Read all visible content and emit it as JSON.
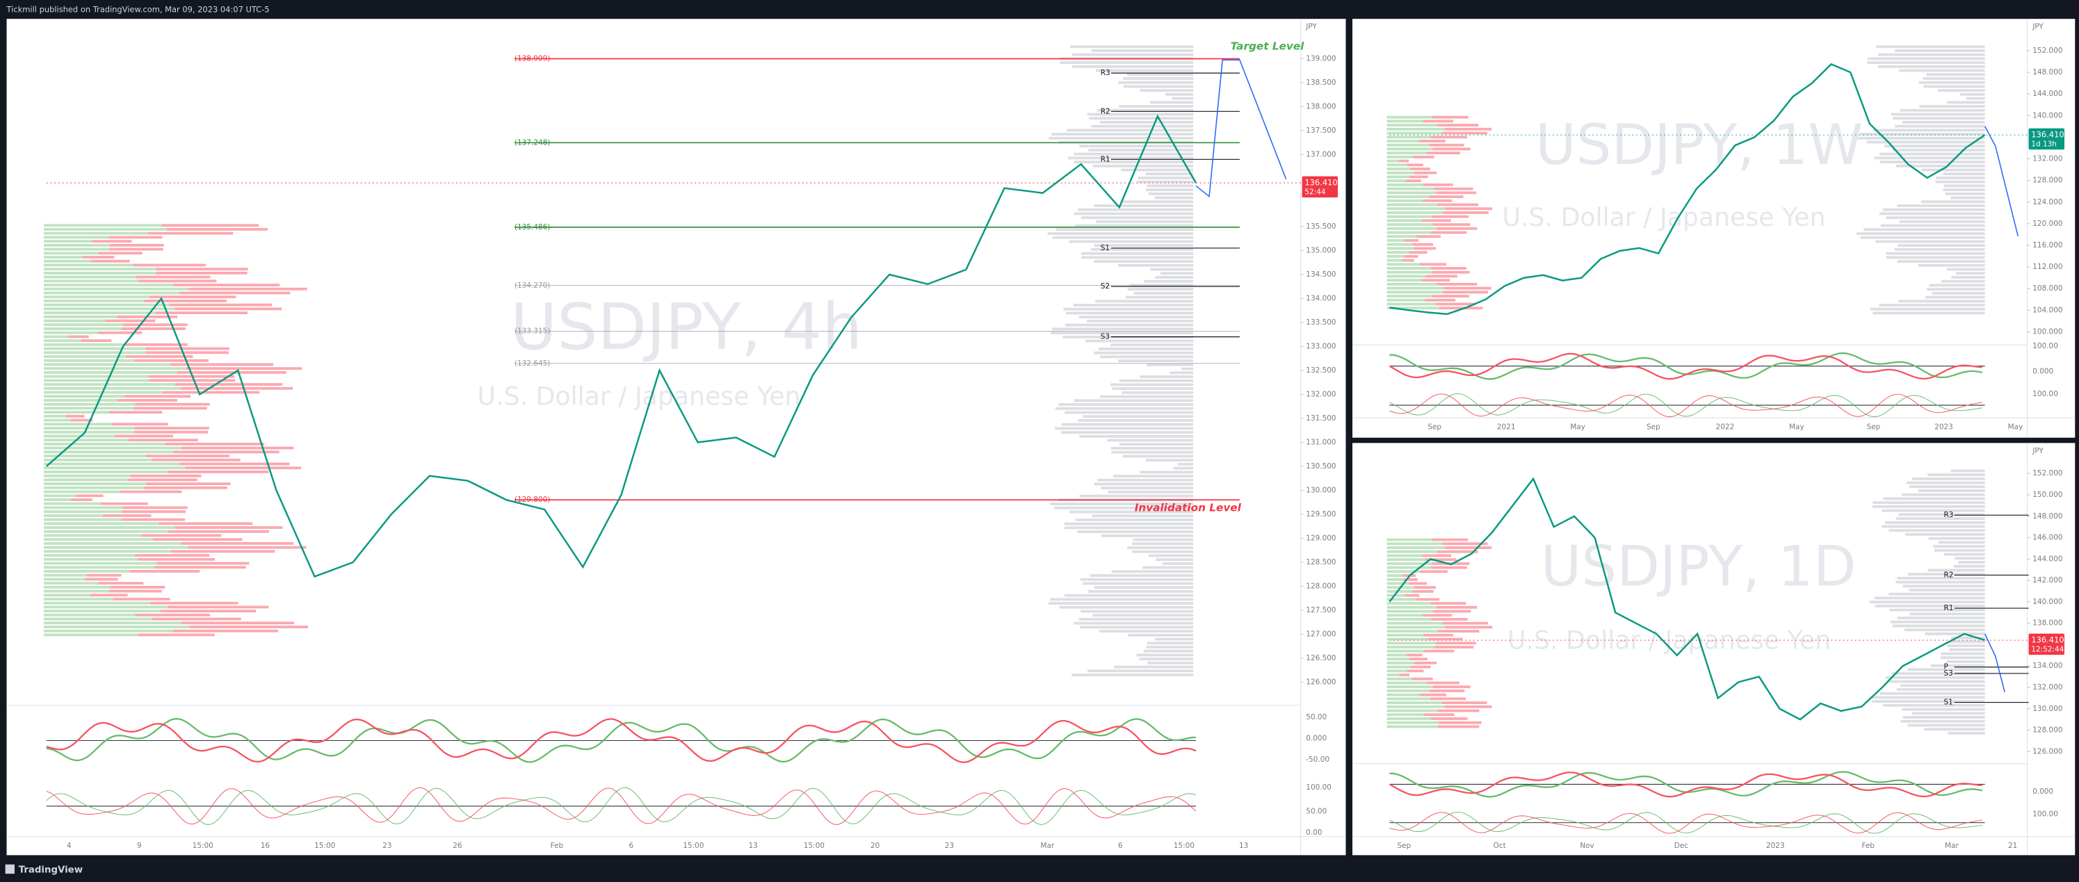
{
  "header": {
    "publisher": "Tickmill published on TradingView.com, Mar 09, 2023 04:07 UTC-5"
  },
  "footer": {
    "brand": "TradingView"
  },
  "chart_data": [
    {
      "type": "line",
      "title": "USDJPY, 4h",
      "subtitle": "U.S. Dollar / Japanese Yen",
      "unit": "JPY",
      "color": "#089981",
      "values": [
        130.5,
        131.2,
        133.0,
        134.0,
        132.0,
        132.5,
        130.0,
        128.2,
        128.5,
        129.5,
        130.3,
        130.2,
        129.8,
        129.6,
        128.4,
        129.9,
        132.5,
        131.0,
        131.1,
        130.7,
        132.4,
        133.6,
        134.5,
        134.3,
        134.6,
        136.3,
        136.2,
        136.8,
        135.9,
        137.8,
        136.41
      ],
      "ylim": [
        125.57,
        139.83
      ],
      "yticks": [
        {
          "value": 126,
          "label": "126.000"
        },
        {
          "value": 126.5,
          "label": "126.500"
        },
        {
          "value": 127,
          "label": "127.000"
        },
        {
          "value": 127.5,
          "label": "127.500"
        },
        {
          "value": 128,
          "label": "128.000"
        },
        {
          "value": 128.5,
          "label": "128.500"
        },
        {
          "value": 129,
          "label": "129.000"
        },
        {
          "value": 129.5,
          "label": "129.500"
        },
        {
          "value": 130,
          "label": "130.000"
        },
        {
          "value": 130.5,
          "label": "130.500"
        },
        {
          "value": 131,
          "label": "131.000"
        },
        {
          "value": 131.5,
          "label": "131.500"
        },
        {
          "value": 132,
          "label": "132.000"
        },
        {
          "value": 132.5,
          "label": "132.500"
        },
        {
          "value": 133,
          "label": "133.000"
        },
        {
          "value": 133.5,
          "label": "133.500"
        },
        {
          "value": 134,
          "label": "134.000"
        },
        {
          "value": 134.5,
          "label": "134.500"
        },
        {
          "value": 135,
          "label": "135.000"
        },
        {
          "value": 135.5,
          "label": "135.500"
        },
        {
          "value": 137,
          "label": "137.000"
        },
        {
          "value": 137.5,
          "label": "137.500"
        },
        {
          "value": 138,
          "label": "138.000"
        },
        {
          "value": 138.5,
          "label": "138.500"
        },
        {
          "value": 139,
          "label": "139.000"
        }
      ],
      "xtick_labels": [
        "4",
        "9",
        "15:00",
        "16",
        "15:00",
        "23",
        "26",
        "Feb",
        "6",
        "15:00",
        "13",
        "15:00",
        "20",
        "23",
        "Mar",
        "6",
        "15:00",
        "13"
      ],
      "levels": [
        {
          "value": 138.999,
          "label": "(138.999)",
          "color": "#f23645"
        },
        {
          "value": 137.248,
          "label": "(137.248)",
          "color": "#388e3c"
        },
        {
          "value": 135.486,
          "label": "(135.486)",
          "color": "#388e3c"
        },
        {
          "value": 134.27,
          "label": "(134.270)",
          "color": "#9598a1"
        },
        {
          "value": 133.315,
          "label": "(133.315)",
          "color": "#9598a1"
        },
        {
          "value": 132.645,
          "label": "(132.645)",
          "color": "#9598a1"
        },
        {
          "value": 129.8,
          "label": "(129.800)",
          "color": "#f23645"
        }
      ],
      "pivots": [
        {
          "value": 138.7,
          "label": "R3"
        },
        {
          "value": 137.9,
          "label": "R2"
        },
        {
          "value": 136.9,
          "label": "R1"
        },
        {
          "value": 135.05,
          "label": "S1"
        },
        {
          "value": 134.25,
          "label": "S2"
        },
        {
          "value": 133.2,
          "label": "S3"
        }
      ],
      "annotations": [
        {
          "text": "Target Level",
          "color": "#4caf50"
        },
        {
          "text": "Invalidation Level",
          "color": "#f23645"
        }
      ],
      "last_price": {
        "value": 136.41,
        "label": "136.410",
        "countdown": "52:44",
        "color": "#f23645"
      },
      "indicator_ticks": [
        "50.00",
        "0.000",
        "-50.00",
        "100.00",
        "50.00",
        "0.00"
      ]
    },
    {
      "type": "line",
      "title": "USDJPY, 1W",
      "subtitle": "U.S. Dollar / Japanese Yen",
      "unit": "JPY",
      "color": "#089981",
      "values": [
        104.5,
        104.0,
        103.6,
        103.3,
        104.5,
        106.0,
        108.5,
        110.0,
        110.5,
        109.5,
        110.0,
        113.5,
        115.0,
        115.5,
        114.5,
        121.0,
        126.5,
        130.0,
        134.5,
        136.0,
        139.0,
        143.5,
        146.0,
        149.5,
        148.0,
        138.5,
        135.0,
        131.0,
        128.5,
        130.5,
        134.0,
        136.41
      ],
      "ylim": [
        98.08,
        157.88
      ],
      "yticks": [
        {
          "value": 100,
          "label": "100.000"
        },
        {
          "value": 104,
          "label": "104.000"
        },
        {
          "value": 108,
          "label": "108.000"
        },
        {
          "value": 112,
          "label": "112.000"
        },
        {
          "value": 116,
          "label": "116.000"
        },
        {
          "value": 120,
          "label": "120.000"
        },
        {
          "value": 124,
          "label": "124.000"
        },
        {
          "value": 128,
          "label": "128.000"
        },
        {
          "value": 132,
          "label": "132.000"
        },
        {
          "value": 140,
          "label": "140.000"
        },
        {
          "value": 144,
          "label": "144.000"
        },
        {
          "value": 148,
          "label": "148.000"
        },
        {
          "value": 152,
          "label": "152.000"
        }
      ],
      "xtick_labels": [
        "Sep",
        "2021",
        "May",
        "Sep",
        "2022",
        "May",
        "Sep",
        "2023",
        "May"
      ],
      "last_price": {
        "value": 136.41,
        "label": "136.410",
        "countdown": "1d 13h",
        "color": "#089981"
      },
      "indicator_ticks": [
        "100.00",
        "0.000",
        "100.00"
      ]
    },
    {
      "type": "line",
      "title": "USDJPY, 1D",
      "subtitle": "U.S. Dollar / Japanese Yen",
      "unit": "JPY",
      "color": "#089981",
      "values": [
        140.0,
        142.5,
        144.0,
        143.5,
        144.5,
        146.5,
        149.0,
        151.5,
        147.0,
        148.0,
        146.0,
        139.0,
        138.0,
        137.0,
        135.0,
        137.0,
        131.0,
        132.5,
        133.0,
        130.0,
        129.0,
        130.5,
        129.8,
        130.2,
        132.0,
        134.0,
        135.0,
        136.0,
        137.0,
        136.41
      ],
      "ylim": [
        125.11,
        154.85
      ],
      "yticks": [
        {
          "value": 126,
          "label": "126.000"
        },
        {
          "value": 128,
          "label": "128.000"
        },
        {
          "value": 130,
          "label": "130.000"
        },
        {
          "value": 132,
          "label": "132.000"
        },
        {
          "value": 134,
          "label": "134.000"
        },
        {
          "value": 138,
          "label": "138.000"
        },
        {
          "value": 140,
          "label": "140.000"
        },
        {
          "value": 142,
          "label": "142.000"
        },
        {
          "value": 144,
          "label": "144.000"
        },
        {
          "value": 146,
          "label": "146.000"
        },
        {
          "value": 148,
          "label": "148.000"
        },
        {
          "value": 150,
          "label": "150.000"
        },
        {
          "value": 152,
          "label": "152.000"
        }
      ],
      "xtick_labels": [
        "Sep",
        "Oct",
        "Nov",
        "Dec",
        "2023",
        "Feb",
        "Mar",
        "21"
      ],
      "pivots": [
        {
          "value": 148.1,
          "label": "R3"
        },
        {
          "value": 142.5,
          "label": "R2"
        },
        {
          "value": 139.4,
          "label": "R1"
        },
        {
          "value": 133.9,
          "label": "P"
        },
        {
          "value": 133.3,
          "label": "S3"
        },
        {
          "value": 130.6,
          "label": "S1"
        }
      ],
      "last_price": {
        "value": 136.41,
        "label": "136.410",
        "countdown": "12:52:44",
        "color": "#f23645"
      },
      "indicator_ticks": [
        "0.000",
        "100.00"
      ]
    }
  ]
}
